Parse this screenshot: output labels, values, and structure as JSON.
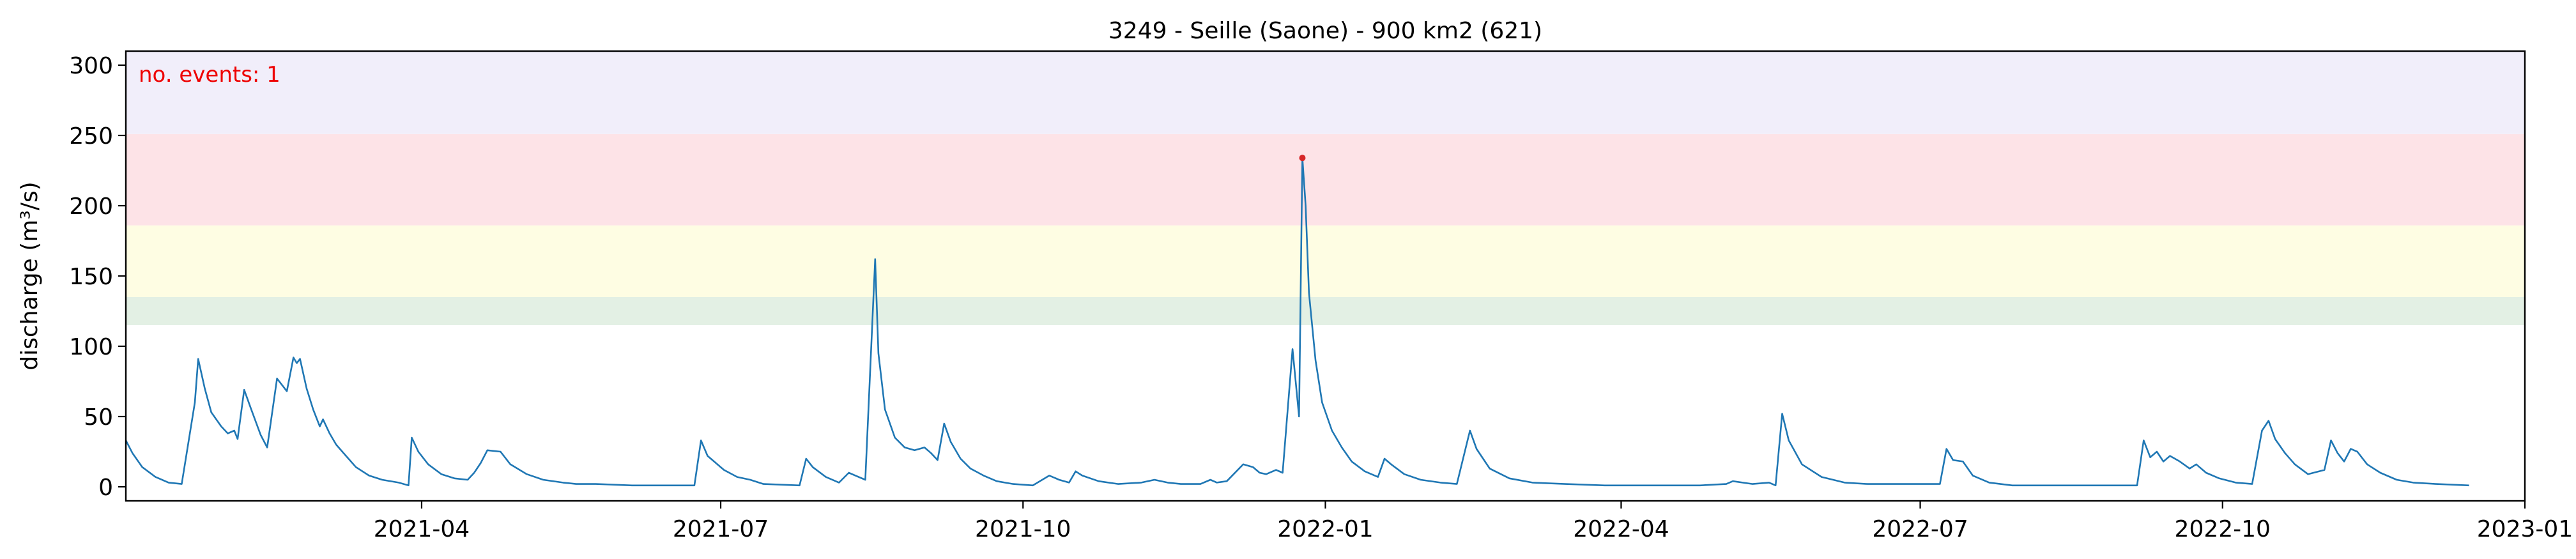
{
  "chart_data": {
    "type": "line",
    "title": "3249 - Seille (Saone) - 900 km2 (621)",
    "xlabel": "",
    "ylabel": "discharge (m³/s)",
    "annotation": "no. events: 1",
    "x_range": [
      "2021-01-01",
      "2023-01-01"
    ],
    "ylim": [
      -10,
      310
    ],
    "grid": false,
    "y_ticks": [
      0,
      50,
      100,
      150,
      200,
      250,
      300
    ],
    "x_ticks": [
      {
        "label": "2021-04",
        "date": "2021-04-01"
      },
      {
        "label": "2021-07",
        "date": "2021-07-01"
      },
      {
        "label": "2021-10",
        "date": "2021-10-01"
      },
      {
        "label": "2022-01",
        "date": "2022-01-01"
      },
      {
        "label": "2022-04",
        "date": "2022-04-01"
      },
      {
        "label": "2022-07",
        "date": "2022-07-01"
      },
      {
        "label": "2022-10",
        "date": "2022-10-01"
      },
      {
        "label": "2023-01",
        "date": "2023-01-01"
      }
    ],
    "threshold_bands": [
      {
        "from": 115,
        "to": 135,
        "color": "#e3f0e4"
      },
      {
        "from": 135,
        "to": 186,
        "color": "#fefde3"
      },
      {
        "from": 186,
        "to": 251,
        "color": "#fde3e7"
      },
      {
        "from": 251,
        "to": 310,
        "color": "#f1eefa"
      }
    ],
    "series": [
      {
        "color": "#1f77b4",
        "points": [
          [
            "2021-01-01",
            33
          ],
          [
            "2021-01-03",
            24
          ],
          [
            "2021-01-06",
            14
          ],
          [
            "2021-01-10",
            7
          ],
          [
            "2021-01-14",
            3
          ],
          [
            "2021-01-18",
            2
          ],
          [
            "2021-01-22",
            60
          ],
          [
            "2021-01-23",
            91
          ],
          [
            "2021-01-25",
            70
          ],
          [
            "2021-01-27",
            53
          ],
          [
            "2021-01-30",
            43
          ],
          [
            "2021-02-01",
            38
          ],
          [
            "2021-02-03",
            40
          ],
          [
            "2021-02-04",
            34
          ],
          [
            "2021-02-06",
            69
          ],
          [
            "2021-02-08",
            56
          ],
          [
            "2021-02-11",
            37
          ],
          [
            "2021-02-13",
            28
          ],
          [
            "2021-02-16",
            77
          ],
          [
            "2021-02-18",
            71
          ],
          [
            "2021-02-19",
            68
          ],
          [
            "2021-02-21",
            92
          ],
          [
            "2021-02-22",
            88
          ],
          [
            "2021-02-23",
            91
          ],
          [
            "2021-02-25",
            70
          ],
          [
            "2021-02-27",
            55
          ],
          [
            "2021-03-01",
            43
          ],
          [
            "2021-03-02",
            48
          ],
          [
            "2021-03-04",
            38
          ],
          [
            "2021-03-06",
            30
          ],
          [
            "2021-03-09",
            22
          ],
          [
            "2021-03-12",
            14
          ],
          [
            "2021-03-16",
            8
          ],
          [
            "2021-03-20",
            5
          ],
          [
            "2021-03-25",
            3
          ],
          [
            "2021-03-28",
            1
          ],
          [
            "2021-03-29",
            35
          ],
          [
            "2021-03-31",
            25
          ],
          [
            "2021-04-03",
            16
          ],
          [
            "2021-04-07",
            9
          ],
          [
            "2021-04-11",
            6
          ],
          [
            "2021-04-15",
            5
          ],
          [
            "2021-04-17",
            10
          ],
          [
            "2021-04-19",
            17
          ],
          [
            "2021-04-21",
            26
          ],
          [
            "2021-04-25",
            25
          ],
          [
            "2021-04-28",
            16
          ],
          [
            "2021-05-03",
            9
          ],
          [
            "2021-05-08",
            5
          ],
          [
            "2021-05-14",
            3
          ],
          [
            "2021-05-18",
            2
          ],
          [
            "2021-05-24",
            2
          ],
          [
            "2021-06-04",
            1
          ],
          [
            "2021-06-14",
            1
          ],
          [
            "2021-06-23",
            1
          ],
          [
            "2021-06-25",
            33
          ],
          [
            "2021-06-27",
            22
          ],
          [
            "2021-07-02",
            12
          ],
          [
            "2021-07-06",
            7
          ],
          [
            "2021-07-10",
            5
          ],
          [
            "2021-07-14",
            2
          ],
          [
            "2021-07-25",
            1
          ],
          [
            "2021-07-27",
            20
          ],
          [
            "2021-07-29",
            14
          ],
          [
            "2021-08-02",
            7
          ],
          [
            "2021-08-06",
            3
          ],
          [
            "2021-08-09",
            10
          ],
          [
            "2021-08-11",
            8
          ],
          [
            "2021-08-14",
            5
          ],
          [
            "2021-08-17",
            162
          ],
          [
            "2021-08-18",
            95
          ],
          [
            "2021-08-20",
            55
          ],
          [
            "2021-08-23",
            35
          ],
          [
            "2021-08-26",
            28
          ],
          [
            "2021-08-29",
            26
          ],
          [
            "2021-09-01",
            28
          ],
          [
            "2021-09-03",
            24
          ],
          [
            "2021-09-05",
            19
          ],
          [
            "2021-09-07",
            45
          ],
          [
            "2021-09-09",
            32
          ],
          [
            "2021-09-12",
            20
          ],
          [
            "2021-09-15",
            13
          ],
          [
            "2021-09-19",
            8
          ],
          [
            "2021-09-23",
            4
          ],
          [
            "2021-09-28",
            2
          ],
          [
            "2021-10-04",
            1
          ],
          [
            "2021-10-09",
            8
          ],
          [
            "2021-10-12",
            5
          ],
          [
            "2021-10-15",
            3
          ],
          [
            "2021-10-17",
            11
          ],
          [
            "2021-10-19",
            8
          ],
          [
            "2021-10-24",
            4
          ],
          [
            "2021-10-30",
            2
          ],
          [
            "2021-11-06",
            3
          ],
          [
            "2021-11-10",
            5
          ],
          [
            "2021-11-14",
            3
          ],
          [
            "2021-11-18",
            2
          ],
          [
            "2021-11-24",
            2
          ],
          [
            "2021-11-27",
            5
          ],
          [
            "2021-11-29",
            3
          ],
          [
            "2021-12-02",
            4
          ],
          [
            "2021-12-07",
            16
          ],
          [
            "2021-12-10",
            14
          ],
          [
            "2021-12-12",
            10
          ],
          [
            "2021-12-14",
            9
          ],
          [
            "2021-12-17",
            12
          ],
          [
            "2021-12-19",
            10
          ],
          [
            "2021-12-22",
            98
          ],
          [
            "2021-12-24",
            50
          ],
          [
            "2021-12-25",
            234
          ],
          [
            "2021-12-26",
            200
          ],
          [
            "2021-12-27",
            138
          ],
          [
            "2021-12-29",
            90
          ],
          [
            "2021-12-31",
            60
          ],
          [
            "2022-01-03",
            40
          ],
          [
            "2022-01-06",
            28
          ],
          [
            "2022-01-09",
            18
          ],
          [
            "2022-01-13",
            11
          ],
          [
            "2022-01-17",
            7
          ],
          [
            "2022-01-19",
            20
          ],
          [
            "2022-01-21",
            16
          ],
          [
            "2022-01-25",
            9
          ],
          [
            "2022-01-30",
            5
          ],
          [
            "2022-02-05",
            3
          ],
          [
            "2022-02-10",
            2
          ],
          [
            "2022-02-14",
            40
          ],
          [
            "2022-02-16",
            27
          ],
          [
            "2022-02-20",
            13
          ],
          [
            "2022-02-26",
            6
          ],
          [
            "2022-03-05",
            3
          ],
          [
            "2022-03-15",
            2
          ],
          [
            "2022-03-27",
            1
          ],
          [
            "2022-04-15",
            1
          ],
          [
            "2022-04-25",
            1
          ],
          [
            "2022-05-03",
            2
          ],
          [
            "2022-05-05",
            4
          ],
          [
            "2022-05-11",
            2
          ],
          [
            "2022-05-16",
            3
          ],
          [
            "2022-05-18",
            1
          ],
          [
            "2022-05-20",
            52
          ],
          [
            "2022-05-22",
            33
          ],
          [
            "2022-05-26",
            16
          ],
          [
            "2022-06-01",
            7
          ],
          [
            "2022-06-08",
            3
          ],
          [
            "2022-06-15",
            2
          ],
          [
            "2022-06-25",
            2
          ],
          [
            "2022-06-30",
            2
          ],
          [
            "2022-07-07",
            2
          ],
          [
            "2022-07-09",
            27
          ],
          [
            "2022-07-11",
            19
          ],
          [
            "2022-07-14",
            18
          ],
          [
            "2022-07-17",
            8
          ],
          [
            "2022-07-22",
            3
          ],
          [
            "2022-07-29",
            1
          ],
          [
            "2022-08-06",
            1
          ],
          [
            "2022-08-17",
            1
          ],
          [
            "2022-08-30",
            1
          ],
          [
            "2022-09-05",
            1
          ],
          [
            "2022-09-07",
            33
          ],
          [
            "2022-09-09",
            21
          ],
          [
            "2022-09-11",
            25
          ],
          [
            "2022-09-13",
            18
          ],
          [
            "2022-09-15",
            22
          ],
          [
            "2022-09-18",
            18
          ],
          [
            "2022-09-21",
            13
          ],
          [
            "2022-09-23",
            16
          ],
          [
            "2022-09-26",
            10
          ],
          [
            "2022-09-30",
            6
          ],
          [
            "2022-10-05",
            3
          ],
          [
            "2022-10-10",
            2
          ],
          [
            "2022-10-13",
            40
          ],
          [
            "2022-10-15",
            47
          ],
          [
            "2022-10-17",
            34
          ],
          [
            "2022-10-20",
            24
          ],
          [
            "2022-10-23",
            16
          ],
          [
            "2022-10-27",
            9
          ],
          [
            "2022-11-01",
            12
          ],
          [
            "2022-11-03",
            33
          ],
          [
            "2022-11-05",
            24
          ],
          [
            "2022-11-07",
            18
          ],
          [
            "2022-11-09",
            27
          ],
          [
            "2022-11-11",
            25
          ],
          [
            "2022-11-14",
            16
          ],
          [
            "2022-11-18",
            10
          ],
          [
            "2022-11-23",
            5
          ],
          [
            "2022-11-28",
            3
          ],
          [
            "2022-12-05",
            2
          ],
          [
            "2022-12-15",
            1
          ]
        ]
      }
    ],
    "event_marker": {
      "date": "2021-12-25",
      "value": 234,
      "color": "#d62728"
    }
  }
}
